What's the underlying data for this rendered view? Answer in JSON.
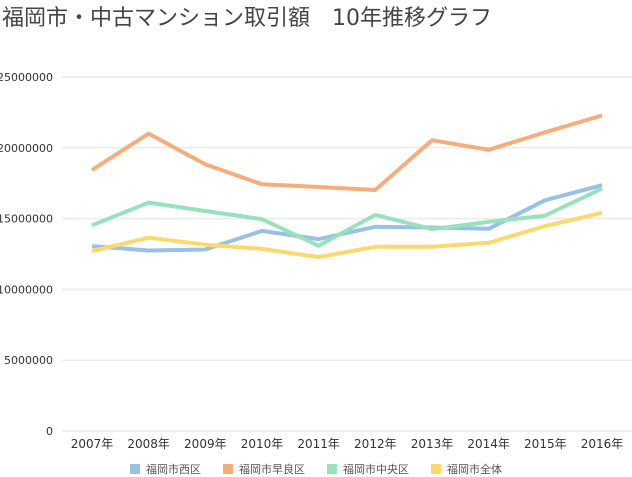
{
  "title": "福岡市・中古マンション取引額　10年推移グラフ",
  "chart_data": {
    "type": "line",
    "title": "福岡市・中古マンション取引額　10年推移グラフ",
    "xlabel": "",
    "ylabel": "",
    "categories": [
      "2007年",
      "2008年",
      "2009年",
      "2010年",
      "2011年",
      "2012年",
      "2013年",
      "2014年",
      "2015年",
      "2016年"
    ],
    "yticks": [
      "0",
      "5000000",
      "10000000",
      "15000000",
      "20000000",
      "25000000"
    ],
    "ylim": [
      0,
      25000000
    ],
    "grid": true,
    "legend_position": "bottom",
    "series": [
      {
        "name": "福岡市西区",
        "color": "#97c1e6",
        "values": [
          13060000,
          12750000,
          12820000,
          14130000,
          13550000,
          14420000,
          14370000,
          14280000,
          16300000,
          17360000
        ]
      },
      {
        "name": "福岡市早良区",
        "color": "#f5ad7b",
        "values": [
          18430000,
          21000000,
          18830000,
          17420000,
          17230000,
          17020000,
          20540000,
          19860000,
          21100000,
          22280000
        ]
      },
      {
        "name": "福岡市中央区",
        "color": "#97e2bd",
        "values": [
          14530000,
          16130000,
          15540000,
          14960000,
          13080000,
          15260000,
          14250000,
          14770000,
          15210000,
          17120000
        ]
      },
      {
        "name": "福岡市全体",
        "color": "#fcd96a",
        "values": [
          12710000,
          13650000,
          13160000,
          12860000,
          12280000,
          13010000,
          13010000,
          13290000,
          14480000,
          15400000
        ]
      }
    ]
  }
}
